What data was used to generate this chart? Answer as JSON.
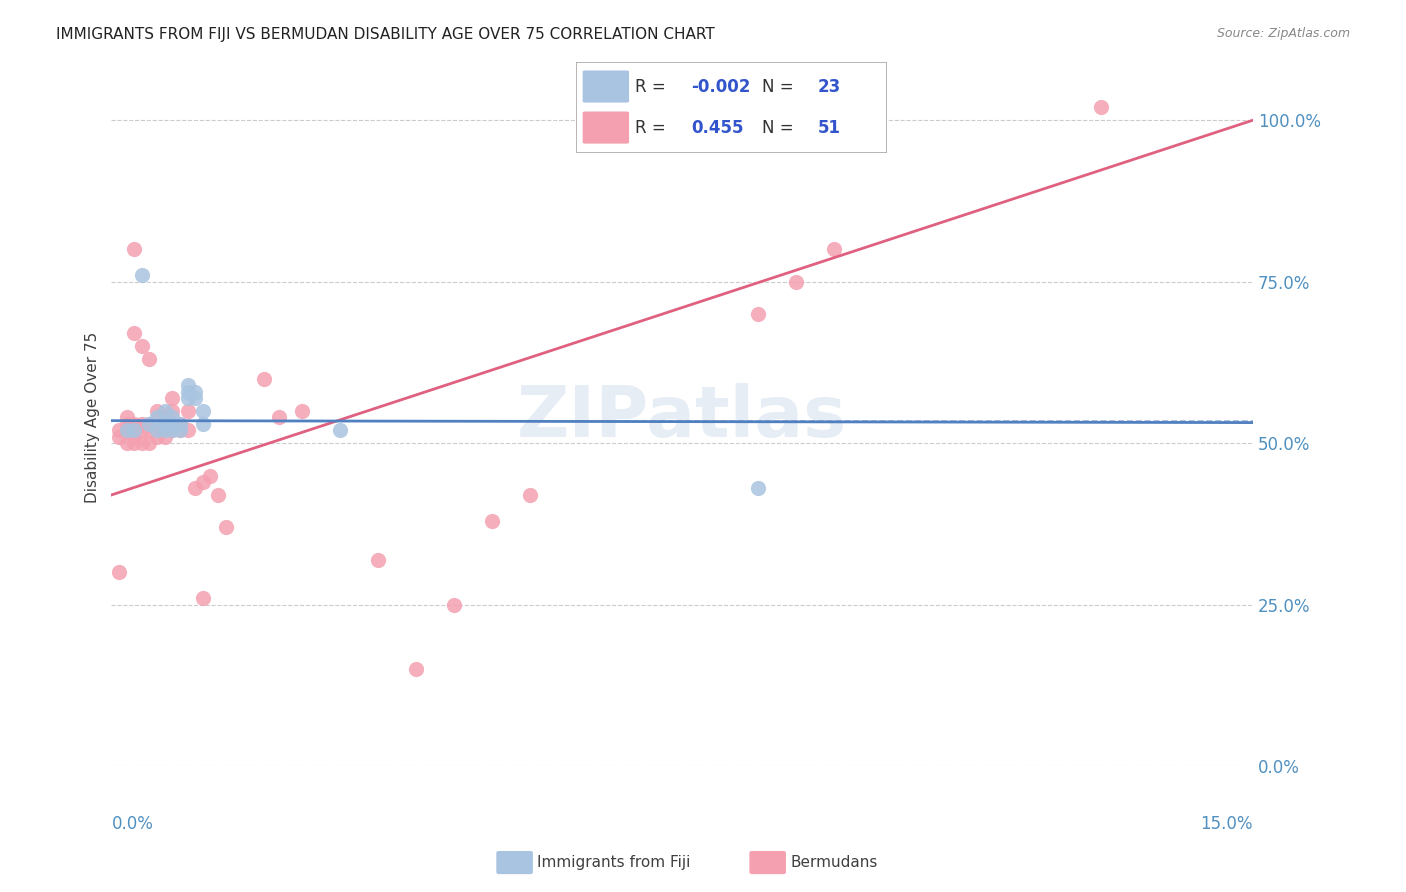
{
  "title": "IMMIGRANTS FROM FIJI VS BERMUDAN DISABILITY AGE OVER 75 CORRELATION CHART",
  "source": "Source: ZipAtlas.com",
  "ylabel": "Disability Age Over 75",
  "yticks": [
    "0.0%",
    "25.0%",
    "50.0%",
    "75.0%",
    "100.0%"
  ],
  "ytick_vals": [
    0.0,
    0.25,
    0.5,
    0.75,
    1.0
  ],
  "xmin": 0.0,
  "xmax": 0.15,
  "ymin": 0.0,
  "ymax": 1.08,
  "fiji_color": "#a8c4e0",
  "bermuda_color": "#f4a0b0",
  "fiji_label": "Immigrants from Fiji",
  "bermuda_label": "Bermudans",
  "fiji_R": "-0.002",
  "fiji_N": "23",
  "bermuda_R": "0.455",
  "bermuda_N": "51",
  "legend_R_color": "#3355cc",
  "fiji_scatter_x": [
    0.002,
    0.003,
    0.005,
    0.006,
    0.006,
    0.007,
    0.007,
    0.007,
    0.008,
    0.008,
    0.008,
    0.009,
    0.009,
    0.01,
    0.01,
    0.01,
    0.011,
    0.011,
    0.012,
    0.012,
    0.03,
    0.085,
    0.004
  ],
  "fiji_scatter_y": [
    0.52,
    0.52,
    0.53,
    0.52,
    0.54,
    0.52,
    0.53,
    0.55,
    0.52,
    0.53,
    0.54,
    0.52,
    0.53,
    0.57,
    0.58,
    0.59,
    0.57,
    0.58,
    0.55,
    0.53,
    0.52,
    0.43,
    0.76
  ],
  "bermuda_scatter_x": [
    0.001,
    0.001,
    0.002,
    0.002,
    0.002,
    0.002,
    0.003,
    0.003,
    0.003,
    0.003,
    0.004,
    0.004,
    0.004,
    0.004,
    0.005,
    0.005,
    0.005,
    0.005,
    0.006,
    0.006,
    0.006,
    0.007,
    0.007,
    0.007,
    0.008,
    0.008,
    0.008,
    0.009,
    0.009,
    0.01,
    0.01,
    0.011,
    0.012,
    0.012,
    0.013,
    0.014,
    0.015,
    0.02,
    0.022,
    0.025,
    0.035,
    0.04,
    0.045,
    0.05,
    0.055,
    0.085,
    0.09,
    0.095,
    0.13,
    0.001,
    0.003
  ],
  "bermuda_scatter_y": [
    0.51,
    0.52,
    0.5,
    0.52,
    0.53,
    0.54,
    0.5,
    0.51,
    0.53,
    0.67,
    0.5,
    0.52,
    0.53,
    0.65,
    0.5,
    0.52,
    0.53,
    0.63,
    0.51,
    0.52,
    0.55,
    0.51,
    0.53,
    0.54,
    0.52,
    0.55,
    0.57,
    0.52,
    0.53,
    0.52,
    0.55,
    0.43,
    0.44,
    0.26,
    0.45,
    0.42,
    0.37,
    0.6,
    0.54,
    0.55,
    0.32,
    0.15,
    0.25,
    0.38,
    0.42,
    0.7,
    0.75,
    0.8,
    1.02,
    0.3,
    0.8
  ],
  "fiji_trendline_x": [
    0.0,
    0.15
  ],
  "fiji_trendline_y": [
    0.535,
    0.532
  ],
  "bermuda_trendline_x": [
    0.0,
    0.15
  ],
  "bermuda_trendline_y": [
    0.42,
    1.0
  ],
  "mean_line_y": 0.535,
  "mean_line_color": "#a0b8d8",
  "watermark": "ZIPatlas",
  "title_fontsize": 11,
  "axis_label_color": "#5090c0"
}
